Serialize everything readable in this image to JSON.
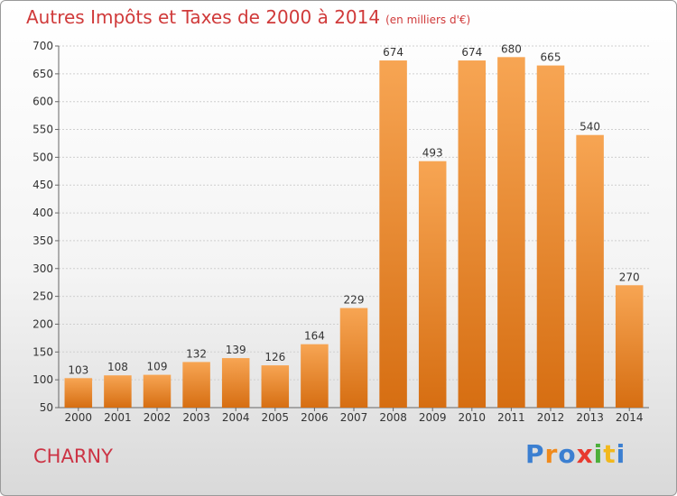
{
  "header": {
    "title": "Autres Impôts et Taxes de 2000 à 2014",
    "unit": "(en milliers d'€)"
  },
  "footer": {
    "commune": "CHARNY",
    "logo": [
      "P",
      "r",
      "o",
      "x",
      "i",
      "t",
      "i"
    ],
    "logo_colors": [
      "#3b7fd1",
      "#f08a1c",
      "#3b7fd1",
      "#e83a2f",
      "#4caf3a",
      "#f2b81c",
      "#3b7fd1"
    ]
  },
  "colors": {
    "bar_top": "#f7a553",
    "bar_bottom": "#d66e12",
    "grid": "#cfcfcf"
  },
  "chart_data": {
    "type": "bar",
    "title": "Autres Impôts et Taxes de 2000 à 2014",
    "xlabel": "",
    "ylabel": "",
    "categories": [
      "2000",
      "2001",
      "2002",
      "2003",
      "2004",
      "2005",
      "2006",
      "2007",
      "2008",
      "2009",
      "2010",
      "2011",
      "2012",
      "2013",
      "2014"
    ],
    "values": [
      103,
      108,
      109,
      132,
      139,
      126,
      164,
      229,
      674,
      493,
      674,
      680,
      665,
      540,
      270
    ],
    "ylim": [
      50,
      700
    ],
    "yticks": [
      50,
      100,
      150,
      200,
      250,
      300,
      350,
      400,
      450,
      500,
      550,
      600,
      650,
      700
    ],
    "grid": true
  }
}
